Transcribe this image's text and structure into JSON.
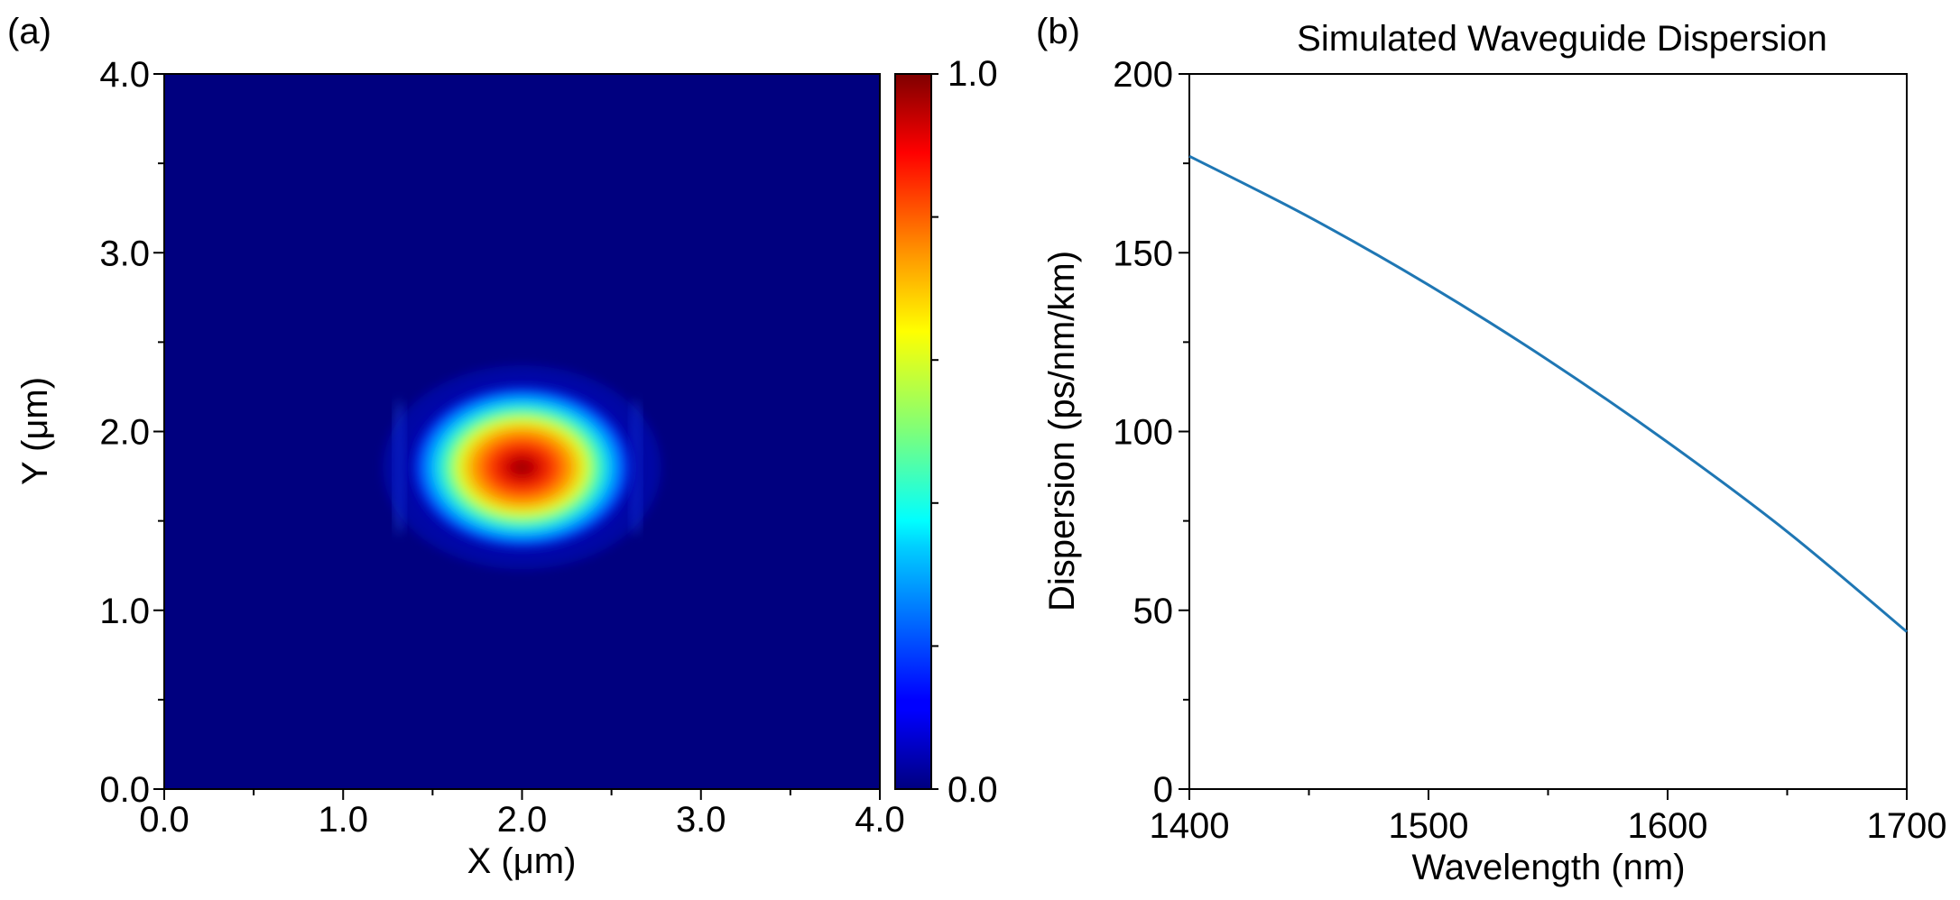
{
  "chart_data": [
    {
      "type": "heatmap",
      "panel_label": "(a)",
      "title": "",
      "xlabel": "X (μm)",
      "ylabel": "Y (μm)",
      "xlim": [
        0.0,
        4.0
      ],
      "ylim": [
        0.0,
        4.0
      ],
      "xticks": [
        "0.0",
        "1.0",
        "2.0",
        "3.0",
        "4.0"
      ],
      "yticks": [
        "0.0",
        "1.0",
        "2.0",
        "3.0",
        "4.0"
      ],
      "colormap": "jet",
      "colorbar": {
        "min": 0.0,
        "max": 1.0,
        "ticks": [
          "0.0",
          "1.0"
        ]
      },
      "mode_peak": {
        "x": 2.0,
        "y": 1.8,
        "value": 1.0
      },
      "mode_extent": {
        "x": [
          1.3,
          2.65
        ],
        "y": [
          1.35,
          2.3
        ]
      },
      "grid": false
    },
    {
      "type": "line",
      "panel_label": "(b)",
      "title": "Simulated Waveguide Dispersion",
      "xlabel": "Wavelength (nm)",
      "ylabel": "Dispersion (ps/nm/km)",
      "xlim": [
        1400,
        1700
      ],
      "ylim": [
        0,
        200
      ],
      "xticks": [
        "1400",
        "1500",
        "1600",
        "1700"
      ],
      "yticks": [
        "0",
        "50",
        "100",
        "150",
        "200"
      ],
      "grid": false,
      "series": [
        {
          "color": "#1f77b4",
          "x": [
            1400,
            1450,
            1500,
            1550,
            1600,
            1650,
            1700
          ],
          "y": [
            177,
            160,
            141,
            120,
            97,
            72,
            44
          ]
        }
      ]
    }
  ]
}
